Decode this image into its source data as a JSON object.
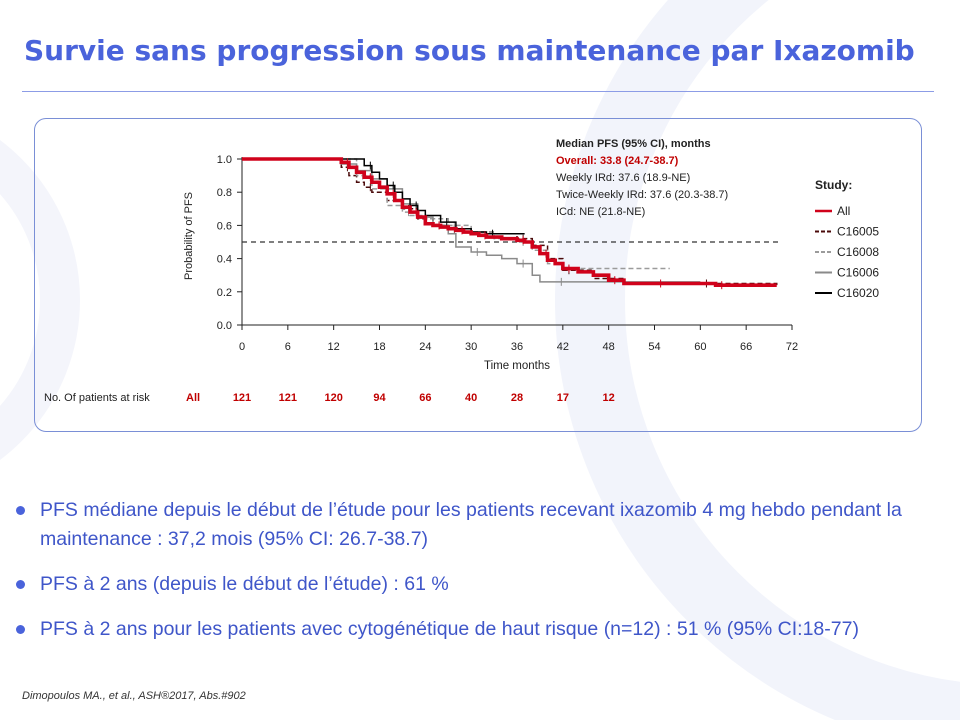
{
  "slide": {
    "title": "Survie sans progression sous maintenance par Ixazomib",
    "bullets": [
      "PFS médiane depuis le début de l’étude pour les patients recevant ixazomib 4 mg hebdo pendant la maintenance : 37,2 mois (95% CI: 26.7-38.7)",
      "PFS à 2 ans (depuis le début de l’étude) : 61 %",
      "PFS à 2 ans pour les patients avec cytogénétique de haut risque (n=12) : 51 % (95% CI:18-77)"
    ],
    "footnote": "Dimopoulos MA., et al., ASH®2017, Abs.#902",
    "accent_color": "#4a63db"
  },
  "chart_data": {
    "type": "line",
    "step": true,
    "xlabel": "Time months",
    "ylabel": "Probability of PFS",
    "xlim": [
      0,
      72
    ],
    "ylim": [
      0,
      1
    ],
    "xticks": [
      "0",
      "6",
      "12",
      "18",
      "24",
      "30",
      "36",
      "42",
      "48",
      "54",
      "60",
      "66",
      "72"
    ],
    "yticks": [
      "0.0",
      "0.2",
      "0.4",
      "0.6",
      "0.8",
      "1.0"
    ],
    "reference_line": 0.5,
    "grid": false,
    "median_box": {
      "heading": "Median PFS (95% CI), months",
      "overall": "Overall: 33.8 (24.7-38.7)",
      "lines": [
        "Weekly IRd: 37.6 (18.9-NE)",
        "Twice-Weekly IRd: 37.6 (20.3-38.7)",
        "ICd: NE (21.8-NE)"
      ]
    },
    "legend_title": "Study:",
    "legend_position": "right",
    "series": [
      {
        "name": "All",
        "color": "#d0021b",
        "dash": "solid",
        "width": 3.6,
        "x": [
          0,
          12,
          13,
          14,
          15,
          16,
          17,
          18,
          19,
          20,
          21,
          22,
          23,
          24,
          25,
          26,
          27,
          28,
          29,
          30,
          31,
          32,
          34,
          36,
          37,
          38,
          39,
          40,
          41,
          42,
          44,
          46,
          48,
          50,
          52,
          54,
          56,
          60,
          62,
          66,
          70
        ],
        "y": [
          1.0,
          1.0,
          0.98,
          0.95,
          0.92,
          0.89,
          0.86,
          0.83,
          0.79,
          0.75,
          0.71,
          0.68,
          0.65,
          0.61,
          0.6,
          0.59,
          0.58,
          0.57,
          0.56,
          0.55,
          0.54,
          0.53,
          0.52,
          0.51,
          0.5,
          0.47,
          0.43,
          0.39,
          0.37,
          0.34,
          0.32,
          0.3,
          0.27,
          0.25,
          0.25,
          0.25,
          0.25,
          0.25,
          0.24,
          0.24,
          0.24
        ]
      },
      {
        "name": "C16005",
        "color": "#4a0a0a",
        "dash": "5,3",
        "width": 1.5,
        "x": [
          0,
          12,
          13,
          14,
          15,
          16,
          17,
          19,
          21,
          23,
          25,
          27,
          30,
          33,
          36,
          38,
          40,
          42,
          46,
          50,
          60,
          70
        ],
        "y": [
          1.0,
          1.0,
          0.95,
          0.9,
          0.86,
          0.83,
          0.8,
          0.75,
          0.7,
          0.64,
          0.6,
          0.58,
          0.56,
          0.55,
          0.52,
          0.48,
          0.4,
          0.33,
          0.28,
          0.25,
          0.25,
          0.24
        ]
      },
      {
        "name": "C16008",
        "color": "#9b9b9b",
        "dash": "5,3",
        "width": 1.5,
        "x": [
          0,
          13,
          15,
          17,
          19,
          21,
          22,
          24,
          27,
          30,
          33,
          36,
          38,
          40,
          42,
          45,
          48,
          56
        ],
        "y": [
          1.0,
          1.0,
          0.9,
          0.82,
          0.72,
          0.68,
          0.66,
          0.64,
          0.6,
          0.56,
          0.52,
          0.5,
          0.45,
          0.37,
          0.34,
          0.34,
          0.34,
          0.34
        ]
      },
      {
        "name": "C16006",
        "color": "#8a8a8a",
        "dash": "solid",
        "width": 1.5,
        "x": [
          0,
          12,
          13,
          15,
          17,
          19,
          21,
          23,
          25,
          27,
          28,
          30,
          32,
          34,
          36,
          38,
          39,
          41,
          48,
          60
        ],
        "y": [
          1.0,
          1.0,
          0.97,
          0.93,
          0.88,
          0.82,
          0.73,
          0.65,
          0.6,
          0.55,
          0.47,
          0.44,
          0.42,
          0.4,
          0.37,
          0.3,
          0.26,
          0.26,
          0.26,
          0.26
        ]
      },
      {
        "name": "C16020",
        "color": "#000000",
        "dash": "solid",
        "width": 1.5,
        "x": [
          0,
          15,
          16,
          17,
          18,
          19,
          20,
          21,
          22,
          23,
          24,
          26,
          28,
          30,
          32,
          34,
          36,
          37
        ],
        "y": [
          1.0,
          1.0,
          0.96,
          0.92,
          0.88,
          0.84,
          0.8,
          0.76,
          0.72,
          0.69,
          0.66,
          0.62,
          0.58,
          0.56,
          0.55,
          0.55,
          0.55,
          0.55
        ]
      }
    ],
    "at_risk": {
      "label": "No. Of patients at risk",
      "group": "All",
      "times": [
        0,
        6,
        12,
        18,
        24,
        30,
        36,
        42,
        48
      ],
      "counts": [
        "121",
        "121",
        "120",
        "94",
        "66",
        "40",
        "28",
        "17",
        "12"
      ]
    }
  }
}
